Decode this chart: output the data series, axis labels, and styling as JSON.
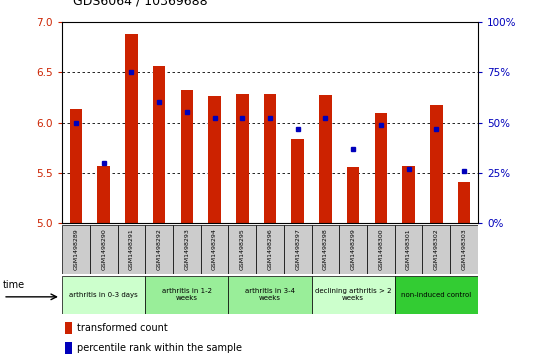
{
  "title": "GDS6064 / 10369688",
  "samples": [
    "GSM1498289",
    "GSM1498290",
    "GSM1498291",
    "GSM1498292",
    "GSM1498293",
    "GSM1498294",
    "GSM1498295",
    "GSM1498296",
    "GSM1498297",
    "GSM1498298",
    "GSM1498299",
    "GSM1498300",
    "GSM1498301",
    "GSM1498302",
    "GSM1498303"
  ],
  "transformed_count": [
    6.13,
    5.57,
    6.88,
    6.56,
    6.32,
    6.26,
    6.28,
    6.28,
    5.84,
    6.27,
    5.56,
    6.09,
    5.57,
    6.17,
    5.41
  ],
  "percentile_rank": [
    50,
    30,
    75,
    60,
    55,
    52,
    52,
    52,
    47,
    52,
    37,
    49,
    27,
    47,
    26
  ],
  "ylim_left": [
    5.0,
    7.0
  ],
  "ylim_right": [
    0,
    100
  ],
  "yticks_left": [
    5.0,
    5.5,
    6.0,
    6.5,
    7.0
  ],
  "yticks_right": [
    0,
    25,
    50,
    75,
    100
  ],
  "bar_color": "#cc2200",
  "dot_color": "#0000bb",
  "bar_bottom": 5.0,
  "groups": [
    {
      "label": "arthritis in 0-3 days",
      "start": 0,
      "end": 3,
      "color": "#ccffcc"
    },
    {
      "label": "arthritis in 1-2\nweeks",
      "start": 3,
      "end": 6,
      "color": "#99ee99"
    },
    {
      "label": "arthritis in 3-4\nweeks",
      "start": 6,
      "end": 9,
      "color": "#99ee99"
    },
    {
      "label": "declining arthritis > 2\nweeks",
      "start": 9,
      "end": 12,
      "color": "#ccffcc"
    },
    {
      "label": "non-induced control",
      "start": 12,
      "end": 15,
      "color": "#33cc33"
    }
  ],
  "legend_red": "transformed count",
  "legend_blue": "percentile rank within the sample",
  "bg_color": "#ffffff",
  "tick_label_color_left": "#cc2200",
  "tick_label_color_right": "#0000bb",
  "sample_box_color": "#cccccc",
  "title_color": "#000000",
  "title_fontsize": 9,
  "bar_width": 0.45
}
